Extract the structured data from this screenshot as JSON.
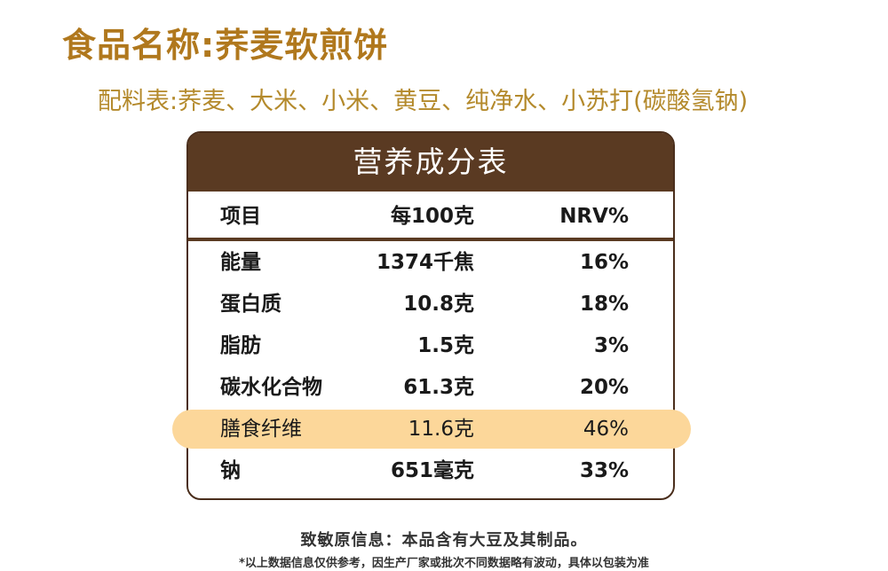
{
  "product": {
    "title": "食品名称:荞麦软煎饼",
    "ingredients": "配料表:荞麦、大米、小米、黄豆、纯净水、小苏打(碳酸氢钠)"
  },
  "nutrition_table": {
    "title": "营养成分表",
    "columns": [
      "项目",
      "每100克",
      "NRV%"
    ],
    "rows": [
      {
        "item": "能量",
        "per100g": "1374千焦",
        "nrv": "16%",
        "highlighted": false
      },
      {
        "item": "蛋白质",
        "per100g": "10.8克",
        "nrv": "18%",
        "highlighted": false
      },
      {
        "item": "脂肪",
        "per100g": "1.5克",
        "nrv": "3%",
        "highlighted": false
      },
      {
        "item": "碳水化合物",
        "per100g": "61.3克",
        "nrv": "20%",
        "highlighted": false
      },
      {
        "item": "膳食纤维",
        "per100g": "11.6克",
        "nrv": "46%",
        "highlighted": true
      },
      {
        "item": "钠",
        "per100g": "651毫克",
        "nrv": "33%",
        "highlighted": false
      }
    ]
  },
  "footer": {
    "allergen": "致敏原信息：本品含有大豆及其制品。",
    "disclaimer": "*以上数据信息仅供参考，因生产厂家或批次不同数据略有波动，具体以包装为准"
  },
  "colors": {
    "title": "#b0781d",
    "ingredients": "#b48a2c",
    "table_header": "#5a3a22",
    "highlight": "#fcd79a"
  }
}
